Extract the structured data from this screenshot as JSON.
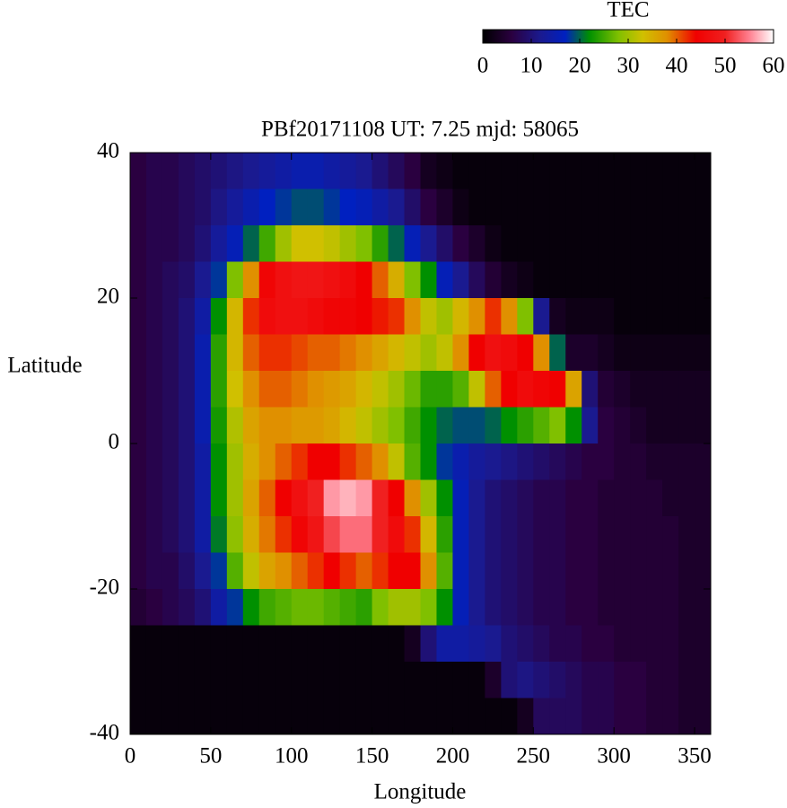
{
  "chart_data": {
    "type": "heatmap",
    "title": "PBf20171108  UT: 7.25  mjd: 58065",
    "x_label": "Longitude",
    "y_label": "Latitude",
    "xlim": [
      0,
      360
    ],
    "ylim": [
      -40,
      40
    ],
    "xticks": [
      0,
      50,
      100,
      150,
      200,
      250,
      300,
      350
    ],
    "yticks": [
      -40,
      -20,
      0,
      20,
      40
    ],
    "x": [
      5,
      15,
      25,
      35,
      45,
      55,
      65,
      75,
      85,
      95,
      105,
      115,
      125,
      135,
      145,
      155,
      165,
      175,
      185,
      195,
      205,
      215,
      225,
      235,
      245,
      255,
      265,
      275,
      285,
      295,
      305,
      315,
      325,
      335,
      345,
      355
    ],
    "y": [
      37.5,
      32.5,
      27.5,
      22.5,
      17.5,
      12.5,
      7.5,
      2.5,
      -2.5,
      -7.5,
      -12.5,
      -17.5,
      -22.5,
      -27.5,
      -32.5,
      -37.5
    ],
    "values": [
      [
        6,
        7,
        7,
        8,
        9,
        10,
        11,
        12,
        13,
        14,
        15,
        15,
        14,
        13,
        12,
        10,
        8,
        6,
        3,
        2,
        1,
        1,
        1,
        1,
        1,
        1,
        1,
        1,
        1,
        1,
        1,
        1,
        1,
        1,
        1,
        1
      ],
      [
        6,
        7,
        7,
        8,
        9,
        11,
        13,
        15,
        17,
        18,
        19,
        19,
        18,
        17,
        16,
        14,
        12,
        9,
        6,
        4,
        2,
        1,
        1,
        1,
        1,
        1,
        1,
        1,
        1,
        1,
        1,
        1,
        1,
        1,
        1,
        1
      ],
      [
        6,
        7,
        7,
        8,
        10,
        13,
        16,
        20,
        25,
        30,
        33,
        33,
        32,
        30,
        28,
        24,
        20,
        16,
        12,
        9,
        6,
        4,
        2,
        1,
        1,
        1,
        1,
        1,
        1,
        1,
        1,
        1,
        1,
        1,
        1,
        1
      ],
      [
        6,
        7,
        8,
        9,
        12,
        18,
        28,
        38,
        45,
        47,
        48,
        48,
        47,
        46,
        44,
        40,
        35,
        28,
        22,
        16,
        12,
        8,
        5,
        3,
        2,
        1,
        1,
        1,
        1,
        1,
        1,
        1,
        1,
        1,
        1,
        1
      ],
      [
        6,
        7,
        8,
        10,
        14,
        22,
        34,
        42,
        46,
        47,
        47,
        46,
        45,
        45,
        44,
        43,
        42,
        38,
        32,
        30,
        34,
        38,
        42,
        38,
        28,
        12,
        3,
        2,
        2,
        2,
        1,
        1,
        1,
        1,
        1,
        1
      ],
      [
        6,
        7,
        8,
        10,
        15,
        24,
        34,
        40,
        42,
        42,
        41,
        40,
        40,
        39,
        38,
        36,
        34,
        32,
        30,
        32,
        38,
        44,
        47,
        46,
        44,
        38,
        20,
        4,
        4,
        3,
        2,
        2,
        2,
        2,
        2,
        2
      ],
      [
        6,
        7,
        8,
        10,
        15,
        24,
        33,
        38,
        40,
        40,
        39,
        38,
        37,
        36,
        34,
        32,
        30,
        27,
        24,
        24,
        26,
        32,
        40,
        44,
        46,
        45,
        44,
        36,
        10,
        5,
        4,
        3,
        3,
        3,
        3,
        3
      ],
      [
        6,
        7,
        8,
        10,
        15,
        23,
        31,
        36,
        38,
        38,
        37,
        37,
        36,
        34,
        32,
        30,
        28,
        25,
        22,
        20,
        19,
        19,
        20,
        22,
        24,
        26,
        28,
        22,
        12,
        6,
        5,
        4,
        3,
        3,
        3,
        3
      ],
      [
        6,
        7,
        8,
        10,
        14,
        22,
        30,
        35,
        38,
        40,
        42,
        44,
        44,
        42,
        40,
        38,
        32,
        26,
        22,
        18,
        15,
        13,
        12,
        11,
        10,
        9,
        8,
        7,
        6,
        6,
        5,
        5,
        4,
        4,
        4,
        4
      ],
      [
        6,
        7,
        8,
        10,
        14,
        22,
        30,
        36,
        40,
        44,
        47,
        50,
        56,
        57,
        56,
        50,
        44,
        38,
        30,
        22,
        16,
        12,
        10,
        9,
        8,
        7,
        7,
        6,
        6,
        5,
        5,
        5,
        5,
        4,
        4,
        4
      ],
      [
        6,
        7,
        8,
        10,
        14,
        21,
        29,
        35,
        39,
        42,
        45,
        48,
        52,
        54,
        54,
        50,
        46,
        42,
        34,
        24,
        16,
        12,
        10,
        9,
        8,
        7,
        7,
        6,
        6,
        5,
        5,
        5,
        5,
        5,
        4,
        4
      ],
      [
        6,
        7,
        7,
        9,
        12,
        18,
        26,
        32,
        36,
        38,
        40,
        42,
        44,
        42,
        40,
        42,
        44,
        44,
        38,
        26,
        16,
        12,
        10,
        9,
        8,
        7,
        7,
        6,
        6,
        5,
        5,
        5,
        5,
        5,
        4,
        4
      ],
      [
        5,
        6,
        7,
        8,
        10,
        14,
        18,
        22,
        25,
        26,
        27,
        27,
        26,
        25,
        24,
        28,
        30,
        30,
        28,
        22,
        16,
        12,
        10,
        9,
        8,
        7,
        7,
        6,
        6,
        5,
        5,
        5,
        5,
        5,
        4,
        4
      ],
      [
        1,
        1,
        1,
        1,
        1,
        1,
        1,
        1,
        1,
        1,
        1,
        1,
        1,
        1,
        1,
        1,
        1,
        3,
        10,
        14,
        14,
        13,
        12,
        10,
        9,
        8,
        7,
        7,
        6,
        6,
        5,
        5,
        5,
        5,
        4,
        4
      ],
      [
        1,
        1,
        1,
        1,
        1,
        1,
        1,
        1,
        1,
        1,
        1,
        1,
        1,
        1,
        1,
        1,
        1,
        1,
        1,
        1,
        1,
        1,
        4,
        10,
        11,
        10,
        9,
        8,
        7,
        7,
        6,
        6,
        5,
        5,
        4,
        4
      ],
      [
        1,
        1,
        1,
        1,
        1,
        1,
        1,
        1,
        1,
        1,
        1,
        1,
        1,
        1,
        1,
        1,
        1,
        1,
        1,
        1,
        1,
        1,
        1,
        1,
        3,
        8,
        8,
        8,
        7,
        7,
        6,
        6,
        5,
        5,
        4,
        4
      ]
    ],
    "colorbar": {
      "title": "TEC",
      "clim": [
        0,
        60
      ],
      "ticks": [
        0,
        10,
        20,
        30,
        40,
        50,
        60
      ]
    },
    "colormap": [
      {
        "value": 0,
        "color": "#000000"
      },
      {
        "value": 6,
        "color": "#2a0040"
      },
      {
        "value": 12,
        "color": "#1a1a90"
      },
      {
        "value": 17,
        "color": "#0020c0"
      },
      {
        "value": 22,
        "color": "#009000"
      },
      {
        "value": 28,
        "color": "#80c000"
      },
      {
        "value": 33,
        "color": "#d0c000"
      },
      {
        "value": 38,
        "color": "#e09000"
      },
      {
        "value": 44,
        "color": "#f00000"
      },
      {
        "value": 50,
        "color": "#f02020"
      },
      {
        "value": 55,
        "color": "#ff8090"
      },
      {
        "value": 60,
        "color": "#ffffff"
      }
    ]
  }
}
